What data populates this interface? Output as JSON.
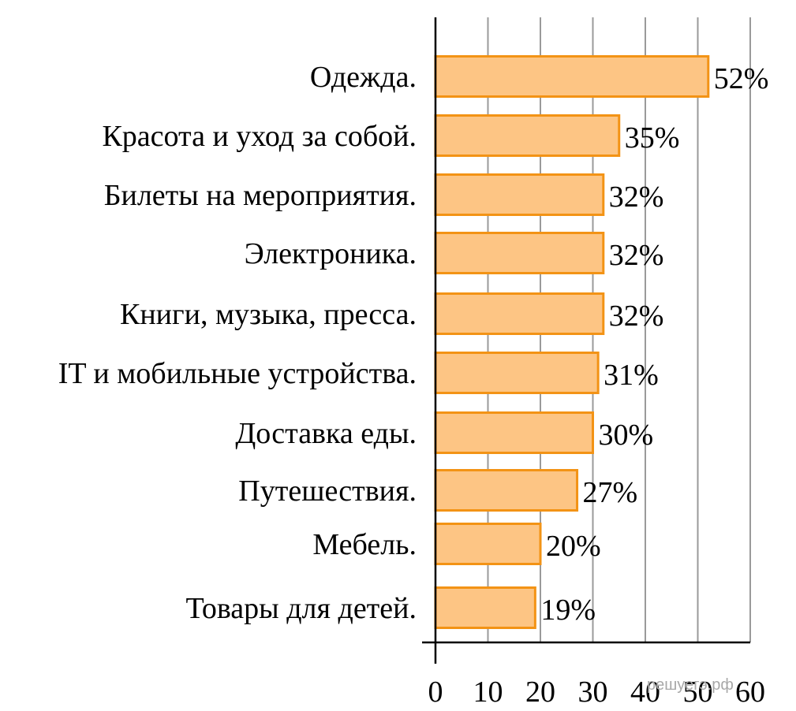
{
  "chart_data": {
    "type": "bar",
    "orientation": "horizontal",
    "categories": [
      "Одежда.",
      "Красота и уход за собой.",
      "Билеты на мероприятия.",
      "Электроника.",
      "Книги, музыка, пресса.",
      "IT и мобильные устройства.",
      "Доставка еды.",
      "Путешествия.",
      "Мебель.",
      "Товары для детей."
    ],
    "values": [
      52,
      35,
      32,
      32,
      32,
      31,
      30,
      27,
      20,
      19
    ],
    "value_labels": [
      "52%",
      "35%",
      "32%",
      "32%",
      "32%",
      "31%",
      "30%",
      "27%",
      "20%",
      "19%"
    ],
    "xlim": [
      0,
      60
    ],
    "x_ticks": [
      0,
      10,
      20,
      30,
      40,
      50,
      60
    ],
    "grid": "vertical",
    "bar_fill": "#fdc584",
    "bar_stroke": "#f39315"
  },
  "watermark": "решуегэ.рф"
}
